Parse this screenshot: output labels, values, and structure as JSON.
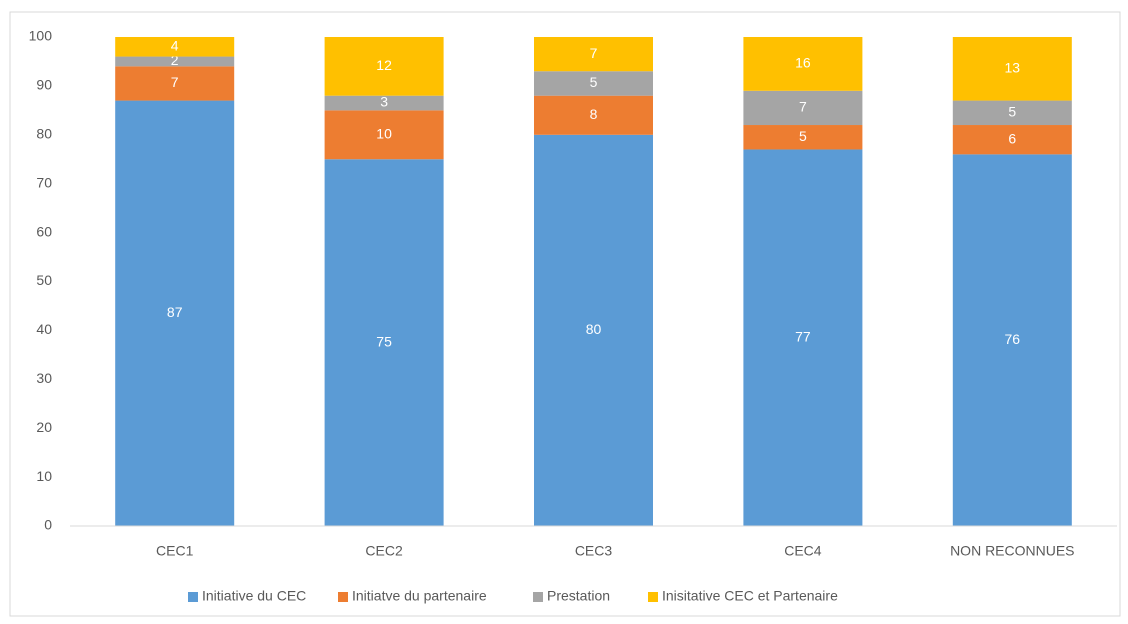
{
  "chart_data": {
    "type": "stacked_bar",
    "categories": [
      "CEC1",
      "CEC2",
      "CEC3",
      "CEC4",
      "NON RECONNUES"
    ],
    "series": [
      {
        "name": "Initiative du CEC",
        "color": "#5b9bd5",
        "values": [
          87,
          75,
          80,
          77,
          76
        ]
      },
      {
        "name": "Initiatve du partenaire",
        "color": "#ed7d31",
        "values": [
          7,
          10,
          8,
          5,
          6
        ]
      },
      {
        "name": "Prestation",
        "color": "#a5a5a5",
        "values": [
          2,
          3,
          5,
          7,
          5
        ]
      },
      {
        "name": "Inisitative CEC et Partenaire",
        "color": "#ffc000",
        "values": [
          4,
          12,
          7,
          16,
          13
        ]
      }
    ],
    "ylim": [
      0,
      100
    ],
    "yticks": [
      0,
      10,
      20,
      30,
      40,
      50,
      60,
      70,
      80,
      90,
      100
    ],
    "grid": false,
    "legend": "bottom"
  }
}
